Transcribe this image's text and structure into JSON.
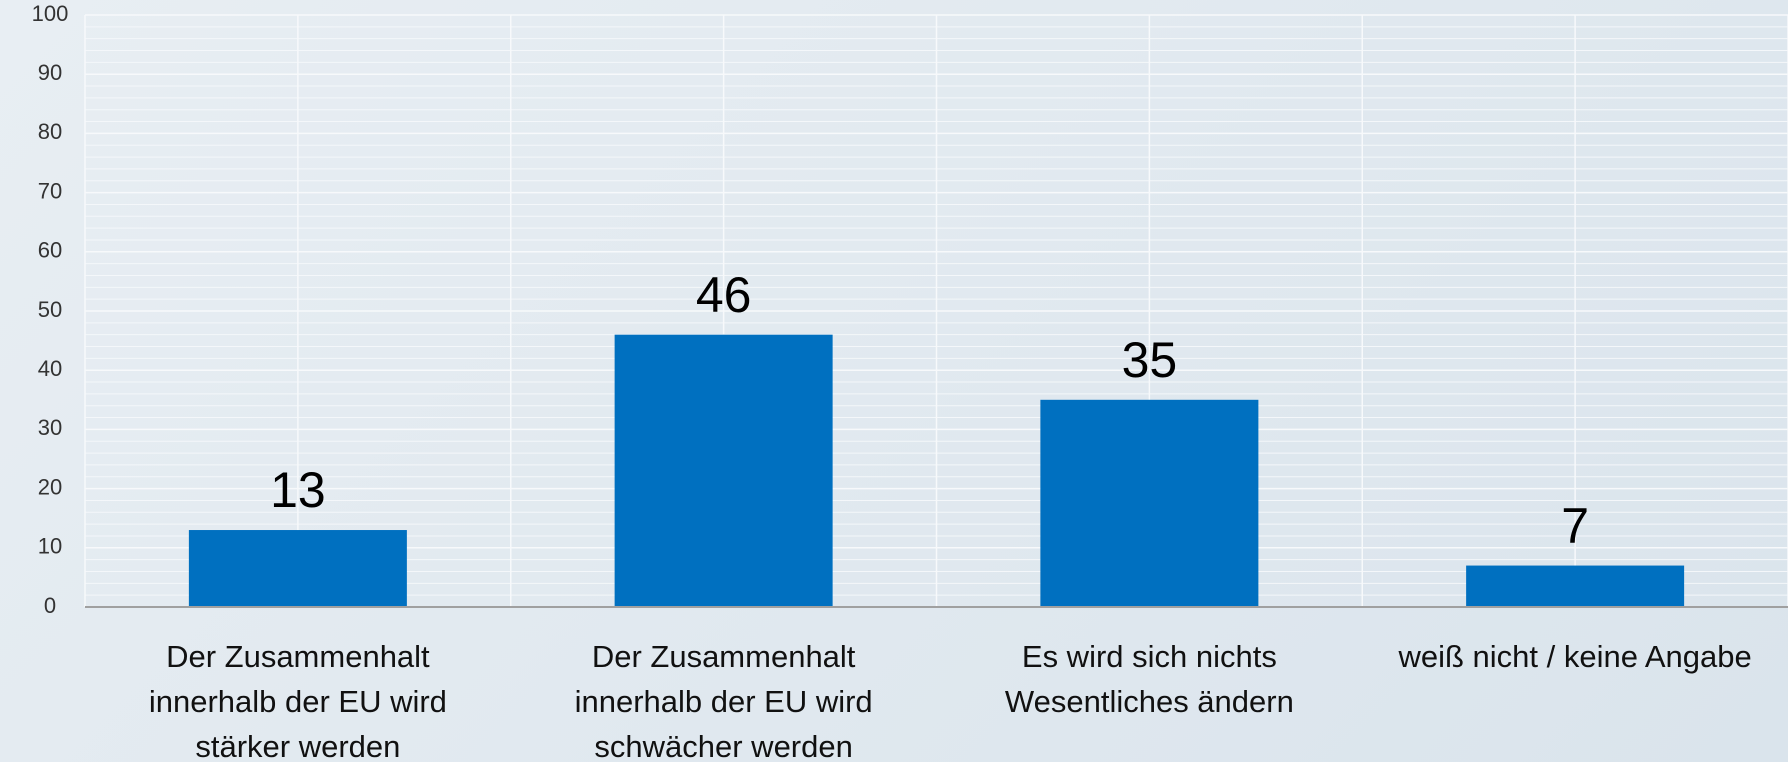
{
  "chart_data": {
    "type": "bar",
    "categories": [
      "Der Zusammenhalt innerhalb der EU wird stärker werden",
      "Der Zusammenhalt innerhalb der EU wird schwächer werden",
      "Es wird sich nichts Wesentliches ändern",
      "weiß nicht / keine Angabe"
    ],
    "values": [
      13,
      46,
      35,
      7
    ],
    "color": "#0070c0",
    "ylim": [
      0,
      100
    ],
    "yticks": [
      0,
      10,
      20,
      30,
      40,
      50,
      60,
      70,
      80,
      90,
      100
    ],
    "grid": true
  }
}
